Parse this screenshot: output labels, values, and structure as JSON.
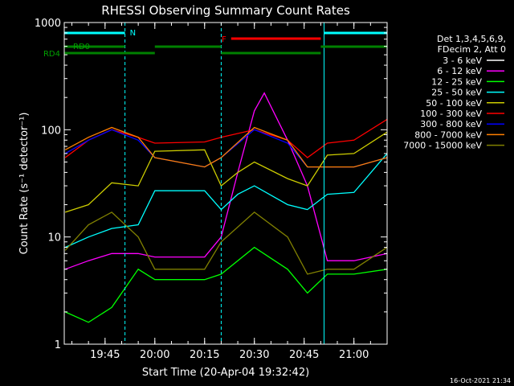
{
  "chart_data": {
    "type": "line",
    "title": "RHESSI Observing Summary Count Rates",
    "xlabel": "Start Time (20-Apr-04 19:32:42)",
    "ylabel": "Count Rate (s⁻¹ detector⁻¹)",
    "y_scale": "log",
    "ylim": [
      1,
      1000
    ],
    "y_ticks": [
      1,
      10,
      100,
      1000
    ],
    "y_tick_labels": [
      "1",
      "10",
      "100",
      "1000"
    ],
    "xlim": [
      "19:32:42",
      "21:10:00"
    ],
    "x_ticks": [
      "19:45",
      "20:00",
      "20:15",
      "20:30",
      "20:45",
      "21:00"
    ],
    "x_tick_labels": [
      "19:45",
      "20:00",
      "20:15",
      "20:30",
      "20:45",
      "21:00"
    ],
    "grid": false,
    "legend": {
      "placement": "right",
      "header": [
        "Det 1,3,4,5,6,9,",
        "FDecim 2, Att 0"
      ]
    },
    "series": [
      {
        "name": "3 - 6 keV",
        "color": "#000000",
        "x": [
          "19:33",
          "19:40",
          "19:47",
          "19:55",
          "20:00",
          "20:05",
          "20:15",
          "20:20",
          "20:25",
          "20:30",
          "20:33",
          "20:40",
          "20:46",
          "20:52",
          "21:00",
          "21:10"
        ],
        "y": [
          1.2,
          1.5,
          2.0,
          3.0,
          1.5,
          1.2,
          1.5,
          5.0,
          30,
          120,
          170,
          90,
          35,
          5.0,
          5.0,
          6.0
        ]
      },
      {
        "name": "6 - 12 keV",
        "color": "#ff00ff",
        "x": [
          "19:33",
          "19:40",
          "19:47",
          "19:55",
          "20:00",
          "20:15",
          "20:20",
          "20:25",
          "20:30",
          "20:33",
          "20:40",
          "20:46",
          "20:52",
          "21:00",
          "21:10"
        ],
        "y": [
          5.0,
          6.0,
          7.0,
          7.0,
          6.5,
          6.5,
          10,
          40,
          150,
          220,
          80,
          30,
          6.0,
          6.0,
          7.0
        ]
      },
      {
        "name": "12 - 25 keV",
        "color": "#00ff00",
        "x": [
          "19:33",
          "19:40",
          "19:47",
          "19:55",
          "20:00",
          "20:15",
          "20:20",
          "20:30",
          "20:40",
          "20:46",
          "20:52",
          "21:00",
          "21:10"
        ],
        "y": [
          2.0,
          1.6,
          2.2,
          5.0,
          4.0,
          4.0,
          4.5,
          8.0,
          5.0,
          3.0,
          4.5,
          4.5,
          5.0
        ]
      },
      {
        "name": "25 - 50 keV",
        "color": "#00ffff",
        "x": [
          "19:33",
          "19:40",
          "19:47",
          "19:55",
          "20:00",
          "20:15",
          "20:20",
          "20:25",
          "20:30",
          "20:40",
          "20:46",
          "20:52",
          "21:00",
          "21:10"
        ],
        "y": [
          8.0,
          10,
          12,
          13,
          27,
          27,
          18,
          25,
          30,
          20,
          18,
          25,
          26,
          60
        ]
      },
      {
        "name": "50 - 100 keV",
        "color": "#cccc00",
        "x": [
          "19:33",
          "19:40",
          "19:47",
          "19:55",
          "20:00",
          "20:15",
          "20:20",
          "20:25",
          "20:30",
          "20:40",
          "20:46",
          "20:52",
          "21:00",
          "21:10"
        ],
        "y": [
          17,
          20,
          32,
          30,
          63,
          65,
          30,
          40,
          50,
          35,
          30,
          58,
          60,
          95
        ]
      },
      {
        "name": "100 - 300 keV",
        "color": "#ff0000",
        "x": [
          "19:33",
          "19:40",
          "19:47",
          "19:55",
          "20:00",
          "20:15",
          "20:20",
          "20:30",
          "20:40",
          "20:46",
          "20:52",
          "21:00",
          "21:10"
        ],
        "y": [
          55,
          80,
          100,
          85,
          75,
          77,
          85,
          100,
          80,
          55,
          75,
          80,
          125
        ]
      },
      {
        "name": "300 - 800 keV",
        "color": "#0000ff",
        "x": [
          "19:33",
          "19:40",
          "19:47",
          "19:55",
          "20:00",
          "20:15",
          "20:20",
          "20:30",
          "20:40",
          "20:46",
          "20:52",
          "21:00",
          "21:10"
        ],
        "y": [
          60,
          80,
          100,
          80,
          55,
          45,
          55,
          100,
          75,
          45,
          45,
          45,
          55
        ]
      },
      {
        "name": "800 - 7000 keV",
        "color": "#ff8000",
        "x": [
          "19:33",
          "19:40",
          "19:47",
          "19:55",
          "20:00",
          "20:15",
          "20:20",
          "20:30",
          "20:40",
          "20:46",
          "20:52",
          "21:00",
          "21:10"
        ],
        "y": [
          65,
          85,
          105,
          85,
          55,
          45,
          55,
          105,
          80,
          45,
          45,
          45,
          55
        ]
      },
      {
        "name": "7000 - 15000 keV",
        "color": "#808000",
        "x": [
          "19:33",
          "19:40",
          "19:47",
          "19:55",
          "20:00",
          "20:15",
          "20:20",
          "20:30",
          "20:40",
          "20:46",
          "20:52",
          "21:00",
          "21:10"
        ],
        "y": [
          7.5,
          13,
          17,
          10,
          5.0,
          5.0,
          9.0,
          17,
          10,
          4.5,
          5.0,
          5.0,
          8.0
        ]
      }
    ],
    "status_bars": [
      {
        "label": "N",
        "color": "#00ffff",
        "segments": [
          [
            "19:32:42",
            "19:51"
          ],
          [
            "20:51",
            "21:10"
          ]
        ]
      },
      {
        "label": "RD0",
        "color": "#008000",
        "segments": [
          [
            "19:32:42",
            "19:51"
          ],
          [
            "20:00",
            "20:20"
          ],
          [
            "20:50",
            "21:10"
          ]
        ]
      },
      {
        "label": "RD4",
        "color": "#008000",
        "segments": [
          [
            "19:32:42",
            "20:00"
          ],
          [
            "20:20",
            "20:50"
          ]
        ]
      },
      {
        "label": "F",
        "color": "#ff0000",
        "segments": [
          [
            "20:23",
            "20:50"
          ]
        ]
      }
    ],
    "vertical_markers": [
      {
        "time": "19:51",
        "color": "#00ffff",
        "style": "dashed"
      },
      {
        "time": "20:20",
        "color": "#00ffff",
        "style": "dashed"
      },
      {
        "time": "20:51",
        "color": "#00ffff",
        "style": "solid"
      },
      {
        "time": "21:10",
        "color": "#00ffff",
        "style": "dashed"
      }
    ]
  },
  "footer": {
    "timestamp": "16-Oct-2021 21:34"
  },
  "colors": {
    "background": "#000000",
    "axes": "#ffffff"
  }
}
